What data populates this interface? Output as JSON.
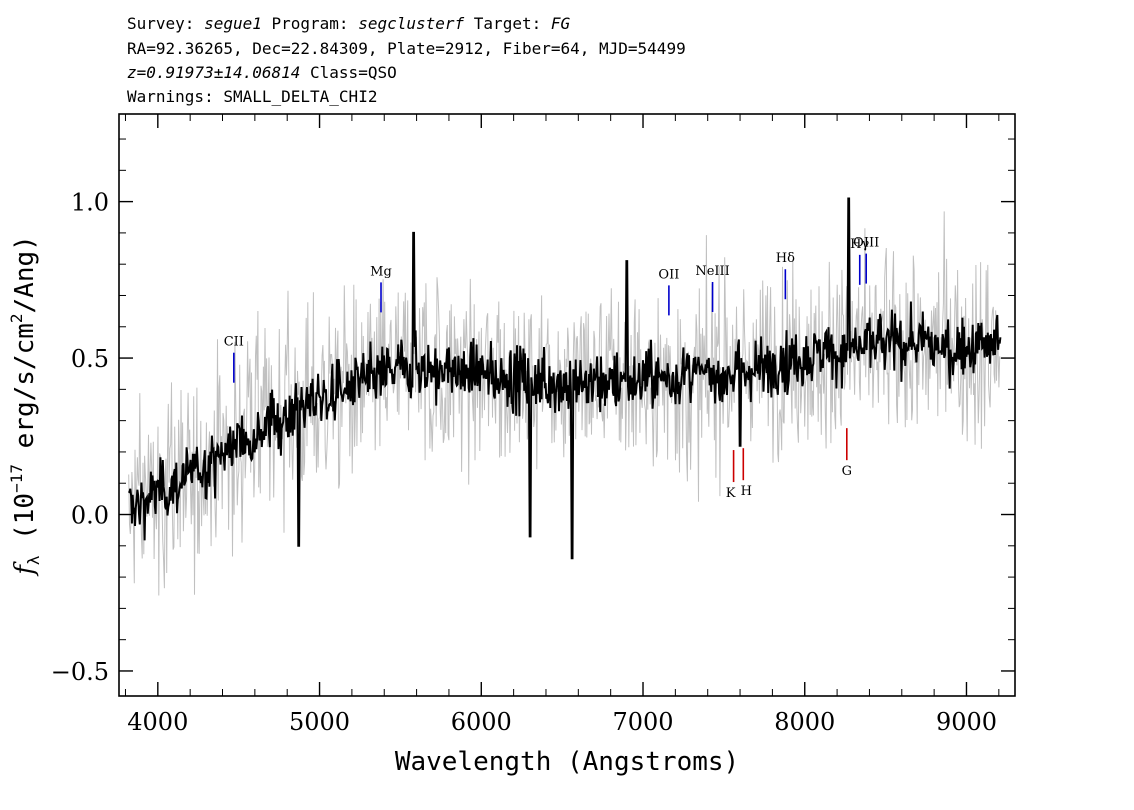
{
  "header": {
    "line1": {
      "survey_key": "Survey: ",
      "survey": "segue1",
      "program_key": " Program: ",
      "program": "segclusterf",
      "target_key": " Target: ",
      "target": "FG"
    },
    "line2": "RA=92.36265, Dec=22.84309, Plate=2912, Fiber=64, MJD=54499",
    "line3": {
      "redshift": "z=0.91973±14.06814",
      "class": " Class=QSO"
    },
    "line4": "Warnings: SMALL_DELTA_CHI2"
  },
  "chart_data": {
    "type": "line",
    "xlabel": "Wavelength (Angstroms)",
    "ylabel": "f_λ (10^-17 erg/s/cm^2/Ang)",
    "ylabel_parts": {
      "f": "f",
      "sub": "λ",
      "mid": " (10",
      "exp1": "−17",
      "mid2": " erg/s/cm",
      "exp2": "2",
      "end": "/Ang)"
    },
    "xlim": [
      3760,
      9300
    ],
    "ylim": [
      -0.58,
      1.28
    ],
    "x_ticks": [
      4000,
      5000,
      6000,
      7000,
      8000,
      9000
    ],
    "x_tick_labels": [
      "4000",
      "5000",
      "6000",
      "7000",
      "8000",
      "9000"
    ],
    "y_ticks": [
      -0.5,
      0.0,
      0.5,
      1.0
    ],
    "y_tick_labels": [
      "−0.5",
      "0.0",
      "0.5",
      "1.0"
    ],
    "grid": false,
    "colors": {
      "flux": "#000000",
      "noise_band": "#c0c0c0",
      "emission": "#0000cc",
      "absorption": "#cc0000"
    },
    "spectrum": {
      "x_start": 3820,
      "x_end": 9210,
      "continuum_knots": [
        [
          3820,
          0.02
        ],
        [
          4200,
          0.12
        ],
        [
          4600,
          0.27
        ],
        [
          5000,
          0.37
        ],
        [
          5500,
          0.47
        ],
        [
          6000,
          0.45
        ],
        [
          6500,
          0.42
        ],
        [
          7000,
          0.43
        ],
        [
          7500,
          0.45
        ],
        [
          8000,
          0.5
        ],
        [
          8500,
          0.55
        ],
        [
          9000,
          0.53
        ],
        [
          9210,
          0.55
        ]
      ],
      "features": [
        {
          "x": 4870,
          "y": -0.1
        },
        {
          "x": 5580,
          "y": 0.9
        },
        {
          "x": 6300,
          "y": -0.07
        },
        {
          "x": 6560,
          "y": -0.14
        },
        {
          "x": 6900,
          "y": 0.81
        },
        {
          "x": 7600,
          "y": 0.22
        },
        {
          "x": 8270,
          "y": 1.01
        }
      ]
    },
    "annotations": [
      {
        "name": "CII",
        "label": "CII",
        "x": 4470,
        "kind": "emission"
      },
      {
        "name": "Mg",
        "label": "Mg",
        "x": 5380,
        "kind": "emission"
      },
      {
        "name": "OII",
        "label": "OII",
        "x": 7160,
        "kind": "emission"
      },
      {
        "name": "NeIII",
        "label": "NeIII",
        "x": 7430,
        "kind": "emission"
      },
      {
        "name": "Hdelta",
        "label": "Hδ",
        "x": 7880,
        "kind": "emission"
      },
      {
        "name": "Hgamma",
        "label": "Hγ",
        "x": 8340,
        "kind": "emission"
      },
      {
        "name": "OIII",
        "label": "OIII",
        "x": 8380,
        "kind": "emission"
      },
      {
        "name": "K",
        "label": "K",
        "x": 7560,
        "kind": "absorption"
      },
      {
        "name": "H",
        "label": "H",
        "x": 7620,
        "kind": "absorption"
      },
      {
        "name": "G",
        "label": "G",
        "x": 8260,
        "kind": "absorption"
      }
    ]
  }
}
